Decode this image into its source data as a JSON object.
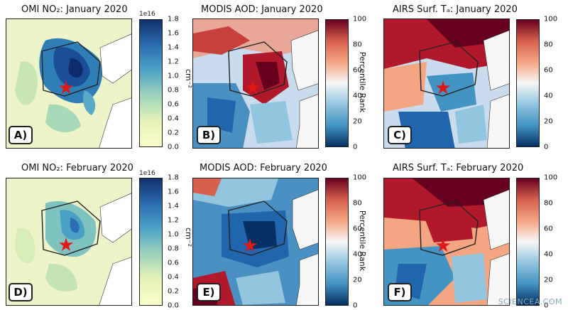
{
  "panels": {
    "a": {
      "title": "OMI NO₂: January 2020",
      "label": "A)"
    },
    "b": {
      "title": "MODIS AOD: January 2020",
      "label": "B)"
    },
    "c": {
      "title": "AIRS Surf. Tₐ: January 2020",
      "label": "C)"
    },
    "d": {
      "title": "OMI NO₂: February 2020",
      "label": "D)"
    },
    "e": {
      "title": "MODIS AOD: February 2020",
      "label": "E)"
    },
    "f": {
      "title": "AIRS Surf. Tₐ: February 2020",
      "label": "F)"
    }
  },
  "colorbars": {
    "no2": {
      "exponent": "1e16",
      "unit": "cm⁻²",
      "ticks": [
        "1.8",
        "1.6",
        "1.4",
        "1.2",
        "1.0",
        "0.8",
        "0.6",
        "0.4",
        "0.2",
        "0.0"
      ],
      "colors": [
        "#12306a",
        "#f7fbc8"
      ]
    },
    "rank": {
      "label": "Percentile Rank",
      "ticks": [
        "100",
        "80",
        "60",
        "40",
        "20",
        "0"
      ],
      "colors": [
        "#6b0a1a",
        "#f5f5f5",
        "#0d3b7a"
      ]
    }
  },
  "marker": {
    "icon": "red-star-icon",
    "glyph": "★",
    "color": "#e01818"
  },
  "watermark": "SCIENCEA.COM"
}
